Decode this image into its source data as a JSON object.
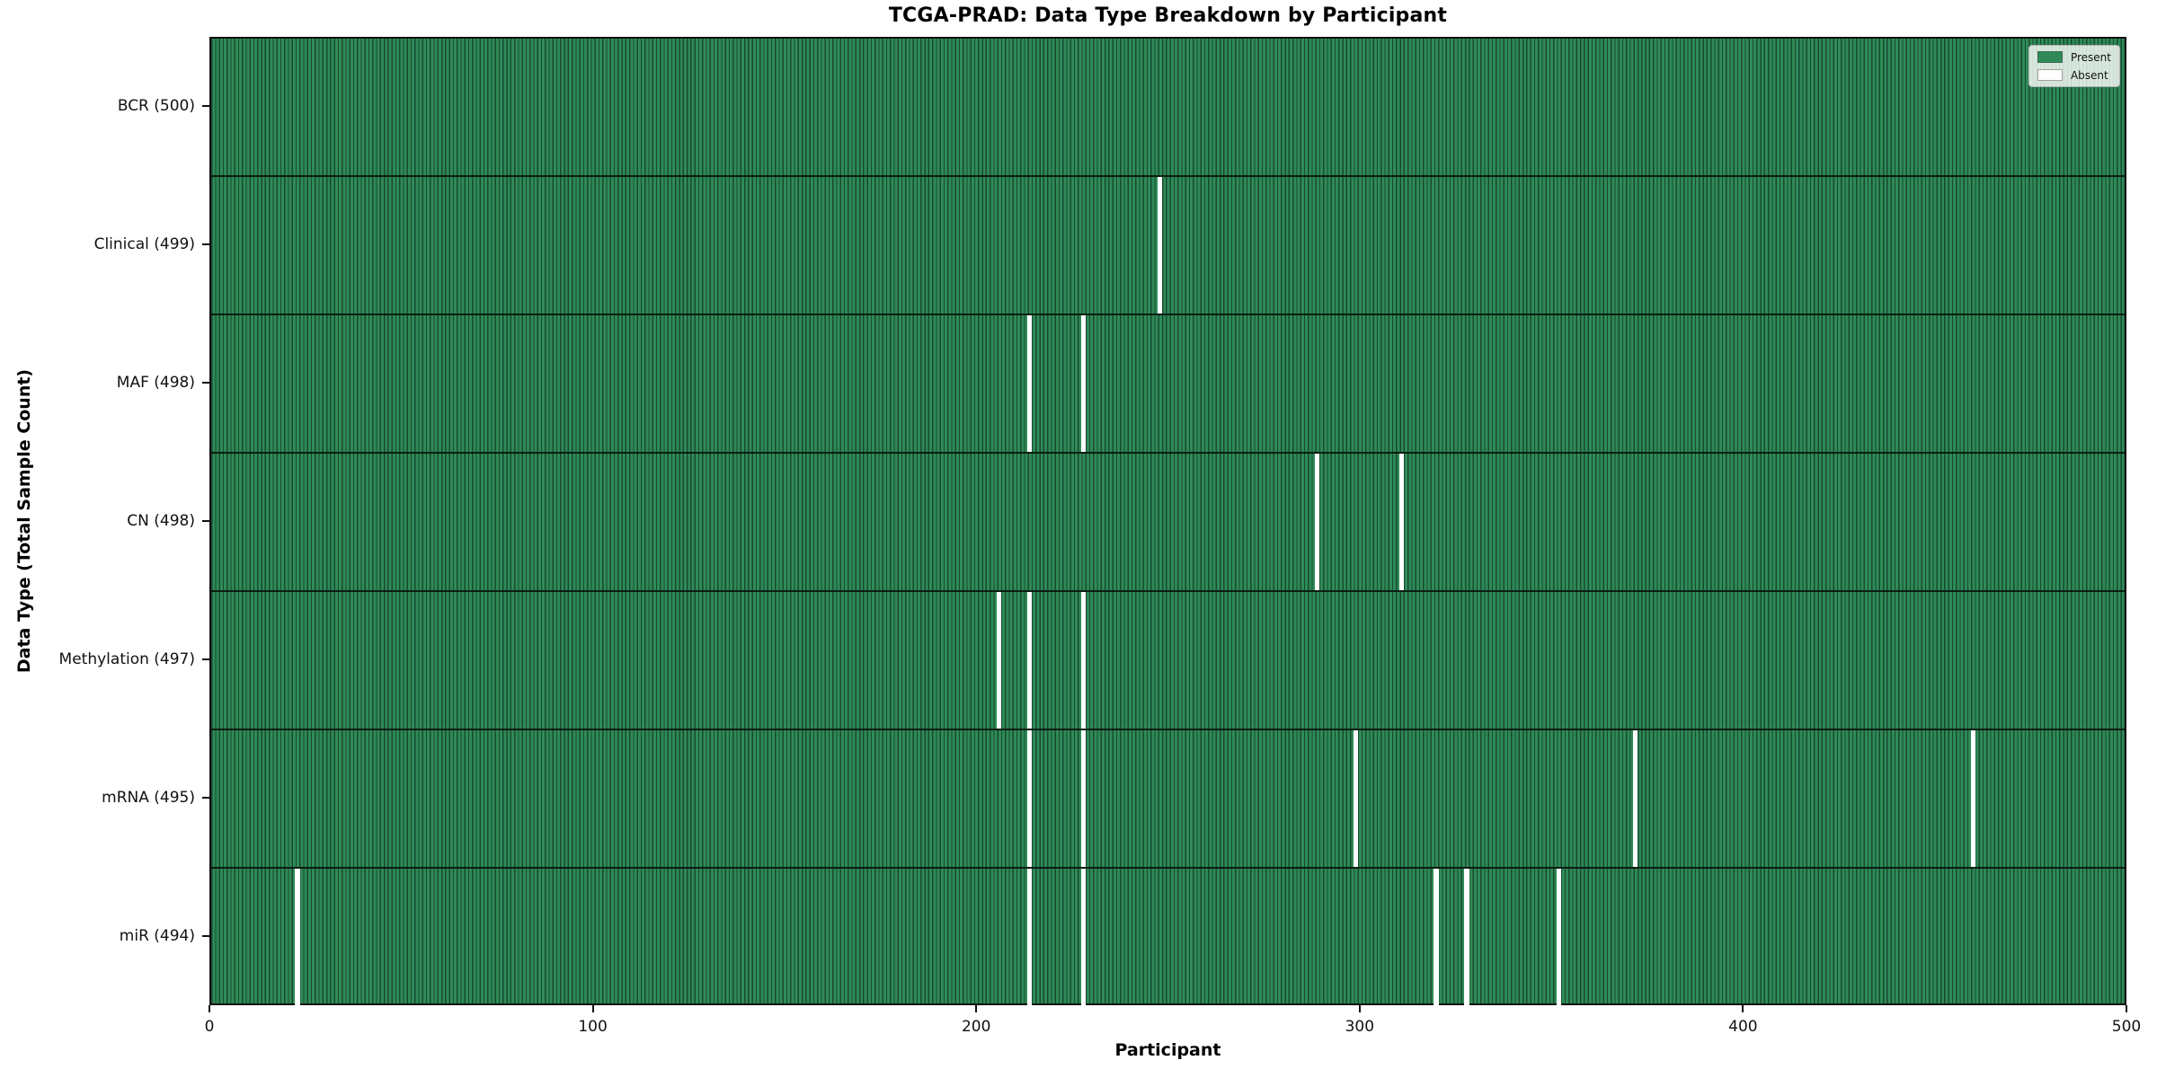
{
  "chart_data": {
    "type": "heatmap",
    "title": "TCGA-PRAD: Data Type Breakdown by Participant",
    "xlabel": "Participant",
    "ylabel": "Data Type (Total Sample Count)",
    "x_range": [
      0,
      500
    ],
    "x_ticks": [
      0,
      100,
      200,
      300,
      400,
      500
    ],
    "n_participants": 500,
    "grid": false,
    "legend": {
      "position": "upper right",
      "entries": [
        {
          "label": "Present",
          "color": "#2e8b57"
        },
        {
          "label": "Absent",
          "color": "#ffffff"
        }
      ]
    },
    "colors": {
      "present_fill": "#2e8b57",
      "cell_edge": "#1a4930",
      "absent_fill": "#ffffff",
      "row_separator": "#111111"
    },
    "rows": [
      {
        "name": "BCR",
        "label": "BCR (500)",
        "total": 500,
        "absent_participants": []
      },
      {
        "name": "Clinical",
        "label": "Clinical (499)",
        "total": 499,
        "absent_participants": [
          247
        ]
      },
      {
        "name": "MAF",
        "label": "MAF (498)",
        "total": 498,
        "absent_participants": [
          213,
          227
        ]
      },
      {
        "name": "CN",
        "label": "CN (498)",
        "total": 498,
        "absent_participants": [
          288,
          310
        ]
      },
      {
        "name": "Methylation",
        "label": "Methylation (497)",
        "total": 497,
        "absent_participants": [
          205,
          213,
          227
        ]
      },
      {
        "name": "mRNA",
        "label": "mRNA (495)",
        "total": 495,
        "absent_participants": [
          213,
          227,
          298,
          371,
          459
        ]
      },
      {
        "name": "miR",
        "label": "miR (494)",
        "total": 494,
        "absent_participants": [
          22,
          213,
          227,
          319,
          327,
          351
        ]
      }
    ]
  }
}
